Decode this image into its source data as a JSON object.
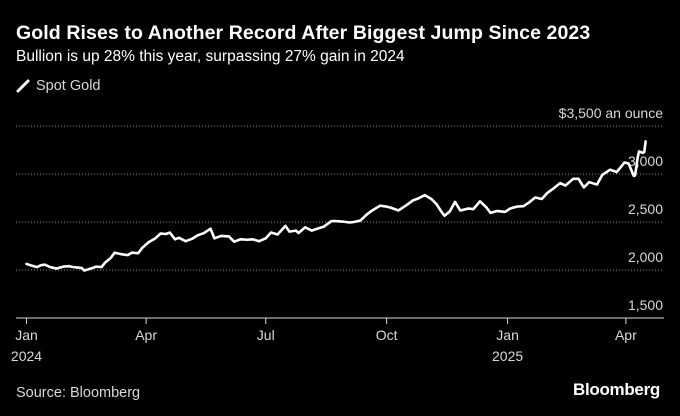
{
  "header": {
    "title": "Gold Rises to Another Record After Biggest Jump Since 2023",
    "subtitle": "Bullion is up 28% this year, surpassing 27% gain in 2024"
  },
  "legend": {
    "label": "Spot Gold"
  },
  "footer": {
    "source": "Source: Bloomberg",
    "brand": "Bloomberg"
  },
  "colors": {
    "background": "#000000",
    "line": "#ffffff",
    "grid": "#8a8a8a",
    "text": "#ffffff",
    "muted": "#d8d8d8"
  },
  "chart_data": {
    "type": "line",
    "title": "Gold Rises to Another Record After Biggest Jump Since 2023",
    "subtitle": "Bullion is up 28% this year, surpassing 27% gain in 2024",
    "xlabel": "",
    "ylabel": "",
    "ylim": [
      1500,
      3500
    ],
    "xlim": [
      "2023-12-24",
      "2025-04-30"
    ],
    "yticks": [
      {
        "value": 3500,
        "label": "$3,500 an ounce"
      },
      {
        "value": 3000,
        "label": "3,000"
      },
      {
        "value": 2500,
        "label": "2,500"
      },
      {
        "value": 2000,
        "label": "2,000"
      },
      {
        "value": 1500,
        "label": "1,500"
      }
    ],
    "xticks": [
      {
        "value": "2024-01-01",
        "label": "Jan",
        "sublabel": "2024"
      },
      {
        "value": "2024-04-01",
        "label": "Apr",
        "sublabel": ""
      },
      {
        "value": "2024-07-01",
        "label": "Jul",
        "sublabel": ""
      },
      {
        "value": "2024-10-01",
        "label": "Oct",
        "sublabel": ""
      },
      {
        "value": "2025-01-01",
        "label": "Jan",
        "sublabel": "2025"
      },
      {
        "value": "2025-04-01",
        "label": "Apr",
        "sublabel": ""
      }
    ],
    "grid": true,
    "legend_position": "top-left",
    "series": [
      {
        "name": "Spot Gold",
        "color": "#ffffff",
        "points": [
          [
            "2024-01-01",
            2063
          ],
          [
            "2024-01-05",
            2045
          ],
          [
            "2024-01-09",
            2030
          ],
          [
            "2024-01-12",
            2050
          ],
          [
            "2024-01-15",
            2055
          ],
          [
            "2024-01-19",
            2030
          ],
          [
            "2024-01-24",
            2015
          ],
          [
            "2024-01-29",
            2035
          ],
          [
            "2024-02-02",
            2040
          ],
          [
            "2024-02-06",
            2030
          ],
          [
            "2024-02-09",
            2025
          ],
          [
            "2024-02-12",
            2020
          ],
          [
            "2024-02-14",
            1995
          ],
          [
            "2024-02-19",
            2015
          ],
          [
            "2024-02-23",
            2035
          ],
          [
            "2024-02-27",
            2030
          ],
          [
            "2024-03-01",
            2080
          ],
          [
            "2024-03-05",
            2125
          ],
          [
            "2024-03-08",
            2180
          ],
          [
            "2024-03-13",
            2165
          ],
          [
            "2024-03-18",
            2155
          ],
          [
            "2024-03-21",
            2180
          ],
          [
            "2024-03-26",
            2175
          ],
          [
            "2024-03-29",
            2230
          ],
          [
            "2024-04-03",
            2290
          ],
          [
            "2024-04-08",
            2330
          ],
          [
            "2024-04-12",
            2380
          ],
          [
            "2024-04-16",
            2375
          ],
          [
            "2024-04-19",
            2390
          ],
          [
            "2024-04-23",
            2320
          ],
          [
            "2024-04-26",
            2335
          ],
          [
            "2024-05-01",
            2300
          ],
          [
            "2024-05-06",
            2325
          ],
          [
            "2024-05-10",
            2360
          ],
          [
            "2024-05-15",
            2385
          ],
          [
            "2024-05-20",
            2430
          ],
          [
            "2024-05-23",
            2330
          ],
          [
            "2024-05-28",
            2355
          ],
          [
            "2024-06-03",
            2350
          ],
          [
            "2024-06-07",
            2295
          ],
          [
            "2024-06-12",
            2320
          ],
          [
            "2024-06-17",
            2315
          ],
          [
            "2024-06-21",
            2320
          ],
          [
            "2024-06-26",
            2300
          ],
          [
            "2024-07-01",
            2330
          ],
          [
            "2024-07-05",
            2390
          ],
          [
            "2024-07-10",
            2370
          ],
          [
            "2024-07-16",
            2460
          ],
          [
            "2024-07-19",
            2400
          ],
          [
            "2024-07-24",
            2410
          ],
          [
            "2024-07-26",
            2385
          ],
          [
            "2024-07-31",
            2445
          ],
          [
            "2024-08-05",
            2410
          ],
          [
            "2024-08-08",
            2425
          ],
          [
            "2024-08-14",
            2450
          ],
          [
            "2024-08-20",
            2510
          ],
          [
            "2024-08-23",
            2510
          ],
          [
            "2024-08-28",
            2505
          ],
          [
            "2024-09-03",
            2495
          ],
          [
            "2024-09-06",
            2500
          ],
          [
            "2024-09-11",
            2515
          ],
          [
            "2024-09-16",
            2580
          ],
          [
            "2024-09-20",
            2620
          ],
          [
            "2024-09-26",
            2670
          ],
          [
            "2024-10-01",
            2660
          ],
          [
            "2024-10-04",
            2650
          ],
          [
            "2024-10-10",
            2620
          ],
          [
            "2024-10-16",
            2675
          ],
          [
            "2024-10-21",
            2725
          ],
          [
            "2024-10-25",
            2745
          ],
          [
            "2024-10-30",
            2780
          ],
          [
            "2024-11-04",
            2740
          ],
          [
            "2024-11-08",
            2685
          ],
          [
            "2024-11-12",
            2600
          ],
          [
            "2024-11-14",
            2565
          ],
          [
            "2024-11-18",
            2610
          ],
          [
            "2024-11-22",
            2710
          ],
          [
            "2024-11-26",
            2620
          ],
          [
            "2024-12-02",
            2640
          ],
          [
            "2024-12-06",
            2635
          ],
          [
            "2024-12-11",
            2715
          ],
          [
            "2024-12-16",
            2650
          ],
          [
            "2024-12-19",
            2595
          ],
          [
            "2024-12-24",
            2615
          ],
          [
            "2024-12-30",
            2605
          ],
          [
            "2025-01-03",
            2640
          ],
          [
            "2025-01-08",
            2660
          ],
          [
            "2025-01-13",
            2665
          ],
          [
            "2025-01-17",
            2700
          ],
          [
            "2025-01-22",
            2755
          ],
          [
            "2025-01-27",
            2740
          ],
          [
            "2025-01-31",
            2800
          ],
          [
            "2025-02-04",
            2840
          ],
          [
            "2025-02-10",
            2905
          ],
          [
            "2025-02-14",
            2880
          ],
          [
            "2025-02-20",
            2950
          ],
          [
            "2025-02-24",
            2950
          ],
          [
            "2025-02-28",
            2860
          ],
          [
            "2025-03-04",
            2915
          ],
          [
            "2025-03-10",
            2890
          ],
          [
            "2025-03-14",
            2990
          ],
          [
            "2025-03-20",
            3045
          ],
          [
            "2025-03-25",
            3020
          ],
          [
            "2025-03-31",
            3120
          ],
          [
            "2025-04-03",
            3110
          ],
          [
            "2025-04-07",
            2980
          ],
          [
            "2025-04-08",
            2985
          ],
          [
            "2025-04-10",
            3175
          ],
          [
            "2025-04-11",
            3235
          ],
          [
            "2025-04-14",
            3220
          ],
          [
            "2025-04-15",
            3230
          ],
          [
            "2025-04-16",
            3340
          ]
        ]
      }
    ]
  }
}
